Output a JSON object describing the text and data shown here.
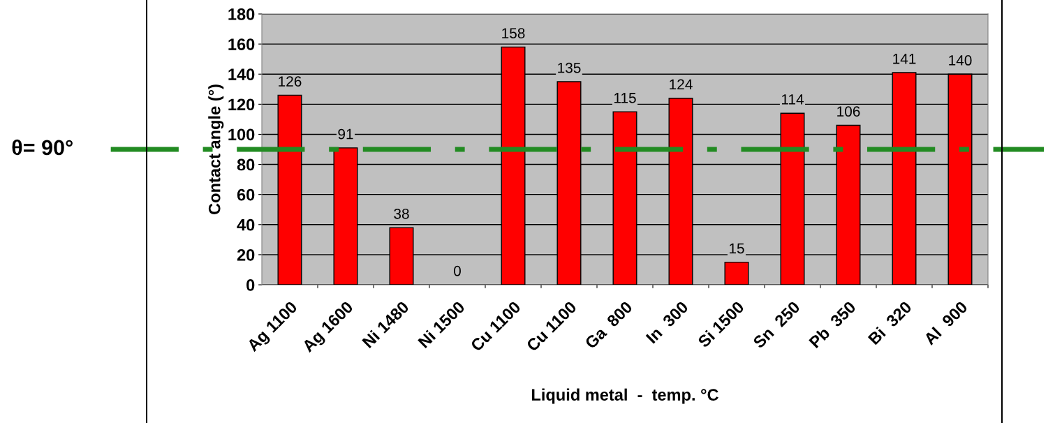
{
  "chart_data": {
    "type": "bar",
    "categories": [
      "Ag 1100",
      "Ag 1600",
      "Ni 1480",
      "Ni 1500",
      "Cu 1100",
      "Cu 1100",
      "Ga  800",
      "In  300",
      "Si 1500",
      "Sn  250",
      "Pb  350",
      "Bi  320",
      "Al  900"
    ],
    "values": [
      126,
      91,
      38,
      0,
      158,
      135,
      115,
      124,
      15,
      114,
      106,
      141,
      140
    ],
    "color": "#ff0000",
    "xlabel": "Liquid metal  -  temp. °C",
    "ylabel": "Contact angle (°)",
    "ylim": [
      0,
      180
    ],
    "yticks": [
      0,
      20,
      40,
      60,
      80,
      100,
      120,
      140,
      160,
      180
    ],
    "grid": "y",
    "data_labels": true,
    "ref_lines": [
      {
        "axis": "y",
        "value": 90,
        "label": "θ= 90°",
        "color": "#228b22",
        "line_style": "dashed"
      }
    ]
  }
}
